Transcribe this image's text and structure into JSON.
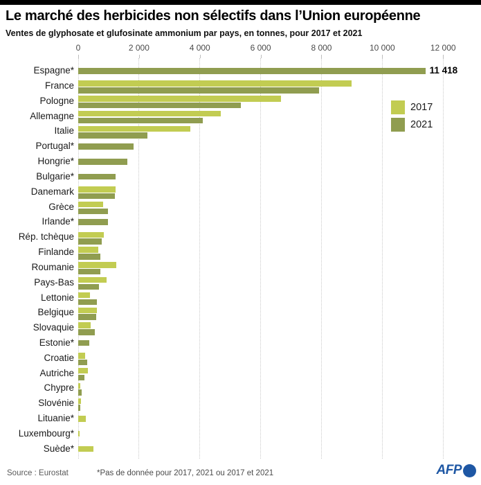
{
  "header": {
    "title": "Le marché des herbicides non sélectifs dans l’Union européenne",
    "subtitle": "Ventes de glyphosate et glufosinate ammonium par pays, en tonnes, pour 2017 et 2021"
  },
  "chart_data": {
    "type": "bar",
    "orientation": "horizontal",
    "unit": "tonnes",
    "xlim": [
      0,
      12000
    ],
    "grid": "dotted-vertical",
    "legend_position": "upper-right",
    "x_ticks": [
      0,
      2000,
      4000,
      6000,
      8000,
      10000,
      12000
    ],
    "x_tick_labels": [
      "0",
      "2 000",
      "4 000",
      "6 000",
      "8 000",
      "10 000",
      "12 000"
    ],
    "categories": [
      "Espagne*",
      "France",
      "Pologne",
      "Allemagne",
      "Italie",
      "Portugal*",
      "Hongrie*",
      "Bulgarie*",
      "Danemark",
      "Grèce",
      "Irlande*",
      "Rép. tchèque",
      "Finlande",
      "Roumanie",
      "Pays-Bas",
      "Lettonie",
      "Belgique",
      "Slovaquie",
      "Estonie*",
      "Croatie",
      "Autriche",
      "Chypre",
      "Slovénie",
      "Lituanie*",
      "Luxembourg*",
      "Suède*"
    ],
    "series": [
      {
        "name": "2017",
        "color": "#c2cc52",
        "values": [
          null,
          9000,
          6670,
          4680,
          3690,
          null,
          null,
          null,
          1230,
          830,
          null,
          840,
          650,
          1260,
          930,
          385,
          620,
          415,
          null,
          225,
          325,
          65,
          95,
          255,
          30,
          490
        ]
      },
      {
        "name": "2021",
        "color": "#909d50",
        "values": [
          11418,
          7930,
          5360,
          4100,
          2270,
          1820,
          1620,
          1230,
          1210,
          990,
          985,
          780,
          730,
          735,
          680,
          605,
          590,
          535,
          360,
          300,
          215,
          125,
          65,
          null,
          null,
          null
        ]
      }
    ],
    "annotations": [
      {
        "category": "Espagne*",
        "series": "2021",
        "label": "11 418"
      }
    ]
  },
  "footer": {
    "source": "Source :  Eurostat",
    "note": "*Pas de donnée pour 2017, 2021 ou 2017 et 2021",
    "logo": "AFP"
  }
}
